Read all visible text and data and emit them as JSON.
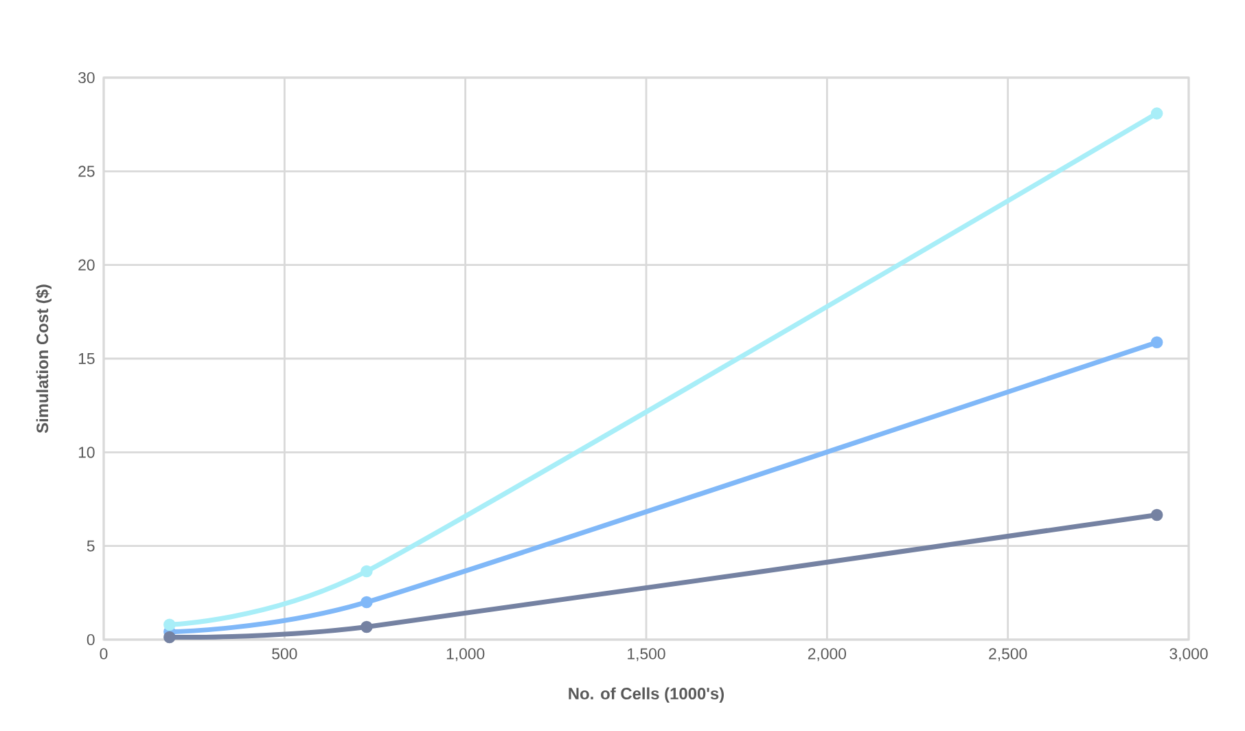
{
  "chart_data": {
    "type": "line",
    "xlabel": "No. of Cells (1000's)",
    "ylabel": "Simulation Cost ($)",
    "xlim": [
      0,
      3000
    ],
    "ylim": [
      0,
      30
    ],
    "xticks": [
      0,
      500,
      {
        "value": 1000,
        "label": "1,000"
      },
      {
        "value": 1500,
        "label": "1,500"
      },
      {
        "value": 2000,
        "label": "2,000"
      },
      {
        "value": 2500,
        "label": "2,500"
      },
      {
        "value": 3000,
        "label": "3,000"
      }
    ],
    "yticks": [
      0,
      5,
      10,
      15,
      20,
      25,
      30
    ],
    "grid": true,
    "marker": "circle",
    "line_style": "solid",
    "series": [
      {
        "color": "#80b8f8",
        "x": [
          182,
          727,
          2912
        ],
        "values": [
          0.42,
          2.0,
          15.87
        ]
      },
      {
        "color": "#a8eef8",
        "x": [
          182,
          727,
          2912
        ],
        "values": [
          0.8,
          3.65,
          28.09
        ]
      },
      {
        "color": "#7582a2",
        "x": [
          182,
          727,
          2912
        ],
        "values": [
          0.13,
          0.68,
          6.66
        ]
      }
    ]
  }
}
